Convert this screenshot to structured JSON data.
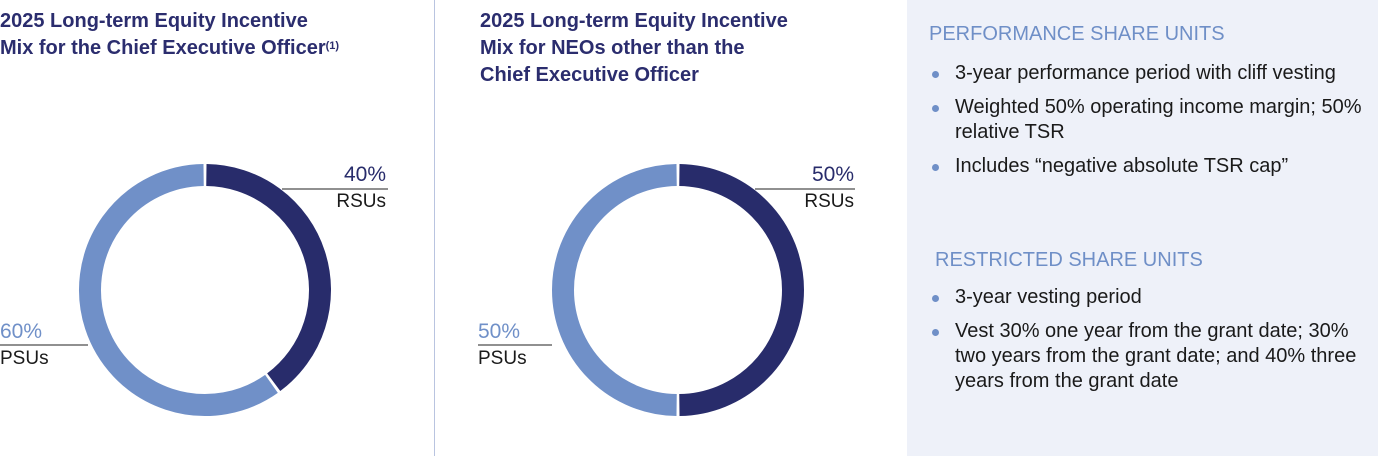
{
  "colors": {
    "rsu": "#282c6b",
    "psu": "#7090c8"
  },
  "chart_data": [
    {
      "type": "pie",
      "title": "2025 Long-term Equity Incentive Mix for the Chief Executive Officer",
      "footnote": "(1)",
      "slices": [
        {
          "label": "RSUs",
          "value": 40,
          "display": "40%"
        },
        {
          "label": "PSUs",
          "value": 60,
          "display": "60%"
        }
      ]
    },
    {
      "type": "pie",
      "title": "2025 Long-term Equity Incentive Mix for NEOs other than the Chief Executive Officer",
      "slices": [
        {
          "label": "RSUs",
          "value": 50,
          "display": "50%"
        },
        {
          "label": "PSUs",
          "value": 50,
          "display": "50%"
        }
      ]
    }
  ],
  "titles": {
    "c1_l1": "2025 Long-term Equity Incentive",
    "c1_l2": "Mix for the Chief Executive Officer",
    "c1_fn": "(1)",
    "c2_l1": "2025 Long-term Equity Incentive",
    "c2_l2": "Mix for NEOs other than the",
    "c2_l3": "Chief Executive Officer"
  },
  "panel": {
    "psu_heading": "PERFORMANCE SHARE UNITS",
    "psu_items": [
      "3-year performance period with cliff vesting",
      "Weighted 50% operating income margin; 50% relative TSR",
      "Includes “negative absolute TSR cap”"
    ],
    "rsu_heading": "RESTRICTED SHARE UNITS",
    "rsu_items": [
      "3-year vesting period",
      "Vest 30% one year from the grant date; 30% two years from the grant date; and 40% three years from the grant date"
    ]
  }
}
